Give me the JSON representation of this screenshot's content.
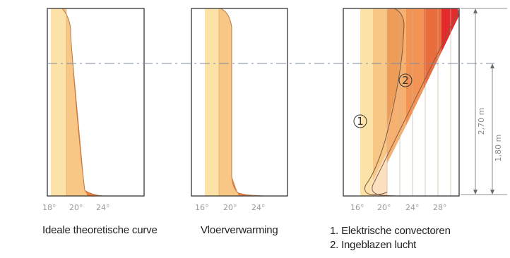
{
  "panels": [
    {
      "caption": "Ideale theoretische curve",
      "ticks": [
        "18°",
        "20°",
        "24°"
      ]
    },
    {
      "caption": "Vloerverwarming",
      "ticks": [
        "16°",
        "20°",
        "24°"
      ]
    },
    {
      "caption_lines": [
        "1. Elektrische convectoren",
        "2. Ingeblazen lucht"
      ],
      "ticks": [
        "16°",
        "20°",
        "24°",
        "28°"
      ],
      "markers": [
        "1",
        "2"
      ]
    }
  ],
  "dimensions": {
    "outer": "2,70 m",
    "inner": "1,80 m"
  },
  "colors": {
    "pale": "#fde2a8",
    "light": "#f9c785",
    "mid": "#f3a35e",
    "dark": "#ee7f3a",
    "red": "#ea4b3a",
    "crimson": "#e52a2e",
    "frame": "#444444",
    "dash": "#7d8aa0"
  }
}
